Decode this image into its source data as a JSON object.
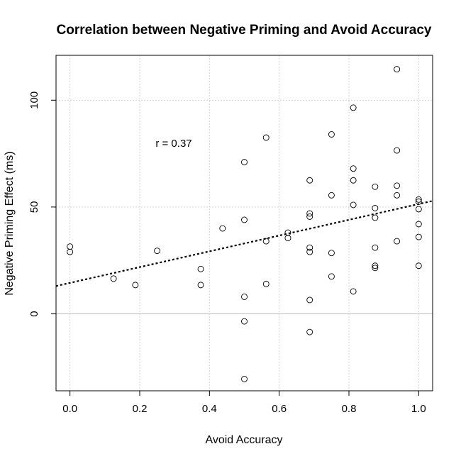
{
  "chart_data": {
    "type": "scatter",
    "title": "Correlation between Negative Priming and Avoid Accuracy",
    "xlabel": "Avoid Accuracy",
    "ylabel": "Negative Priming Effect (ms)",
    "xlim": [
      -0.04,
      1.04
    ],
    "ylim": [
      -36,
      121
    ],
    "x_ticks": [
      0.0,
      0.2,
      0.4,
      0.6,
      0.8,
      1.0
    ],
    "x_tick_labels": [
      "0.0",
      "0.2",
      "0.4",
      "0.6",
      "0.8",
      "1.0"
    ],
    "y_ticks": [
      0,
      50,
      100
    ],
    "y_tick_labels": [
      "0",
      "50",
      "100"
    ],
    "grid": true,
    "reference_line": {
      "y": 0,
      "color": "#bebebe"
    },
    "regression_line": {
      "intercept": 14.5,
      "slope": 36.9,
      "style": "dotted",
      "color": "#000000"
    },
    "annotation": {
      "text": "r = 0.37",
      "x": 0.3,
      "y": 80
    },
    "points": [
      {
        "x": 0.0,
        "y": 31.5
      },
      {
        "x": 0.0,
        "y": 29.0
      },
      {
        "x": 0.125,
        "y": 16.5
      },
      {
        "x": 0.1875,
        "y": 13.5
      },
      {
        "x": 0.25,
        "y": 29.5
      },
      {
        "x": 0.375,
        "y": 21.0
      },
      {
        "x": 0.375,
        "y": 13.5
      },
      {
        "x": 0.4375,
        "y": 40.0
      },
      {
        "x": 0.5,
        "y": 71.0
      },
      {
        "x": 0.5,
        "y": 44.0
      },
      {
        "x": 0.5,
        "y": 8.0
      },
      {
        "x": 0.5,
        "y": -3.5
      },
      {
        "x": 0.5,
        "y": -30.5
      },
      {
        "x": 0.5625,
        "y": 82.5
      },
      {
        "x": 0.5625,
        "y": 34.0
      },
      {
        "x": 0.5625,
        "y": 14.0
      },
      {
        "x": 0.625,
        "y": 38.0
      },
      {
        "x": 0.625,
        "y": 35.5
      },
      {
        "x": 0.6875,
        "y": 62.5
      },
      {
        "x": 0.6875,
        "y": 47.0
      },
      {
        "x": 0.6875,
        "y": 45.5
      },
      {
        "x": 0.6875,
        "y": 31.0
      },
      {
        "x": 0.6875,
        "y": 29.0
      },
      {
        "x": 0.6875,
        "y": 6.5
      },
      {
        "x": 0.6875,
        "y": -8.5
      },
      {
        "x": 0.75,
        "y": 84.0
      },
      {
        "x": 0.75,
        "y": 55.5
      },
      {
        "x": 0.75,
        "y": 28.5
      },
      {
        "x": 0.75,
        "y": 17.5
      },
      {
        "x": 0.8125,
        "y": 96.5
      },
      {
        "x": 0.8125,
        "y": 68.0
      },
      {
        "x": 0.8125,
        "y": 62.5
      },
      {
        "x": 0.8125,
        "y": 51.0
      },
      {
        "x": 0.8125,
        "y": 10.5
      },
      {
        "x": 0.875,
        "y": 59.5
      },
      {
        "x": 0.875,
        "y": 49.5
      },
      {
        "x": 0.875,
        "y": 45.0
      },
      {
        "x": 0.875,
        "y": 31.0
      },
      {
        "x": 0.875,
        "y": 22.5
      },
      {
        "x": 0.875,
        "y": 21.5
      },
      {
        "x": 0.9375,
        "y": 114.5
      },
      {
        "x": 0.9375,
        "y": 76.5
      },
      {
        "x": 0.9375,
        "y": 60.0
      },
      {
        "x": 0.9375,
        "y": 55.5
      },
      {
        "x": 0.9375,
        "y": 34.0
      },
      {
        "x": 1.0,
        "y": 53.5
      },
      {
        "x": 1.0,
        "y": 52.5
      },
      {
        "x": 1.0,
        "y": 49.0
      },
      {
        "x": 1.0,
        "y": 42.0
      },
      {
        "x": 1.0,
        "y": 36.0
      },
      {
        "x": 1.0,
        "y": 22.5
      }
    ]
  }
}
